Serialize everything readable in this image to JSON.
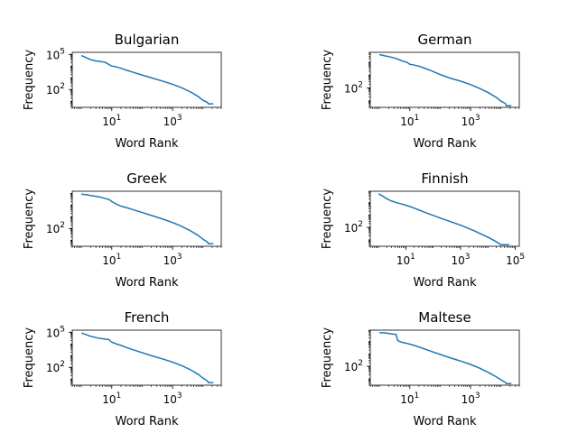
{
  "colors": {
    "series": "#1f77b4",
    "axes": "#000000",
    "background": "#ffffff"
  },
  "chart_data": [
    {
      "type": "line",
      "title": "Bulgarian",
      "xlabel": "Word Rank",
      "ylabel": "Frequency",
      "xscale": "log",
      "yscale": "log",
      "xlim": [
        0.5,
        40000
      ],
      "ylim": [
        3,
        150000
      ],
      "xticks": [
        {
          "base": "10",
          "exp": "1",
          "v": 10
        },
        {
          "base": "10",
          "exp": "3",
          "v": 1000
        }
      ],
      "yticks": [
        {
          "base": "10",
          "exp": "5",
          "v": 100000
        },
        {
          "base": "10",
          "exp": "2",
          "v": 100
        }
      ],
      "series": [
        {
          "x": [
            1,
            1.5,
            2,
            3,
            4,
            5,
            6,
            7,
            8,
            10,
            12,
            14,
            20,
            30,
            50,
            100,
            200,
            500,
            1000,
            2000,
            4000,
            7000,
            10000,
            14000,
            15000,
            20000,
            22000
          ],
          "y": [
            80000,
            50000,
            35000,
            28000,
            25000,
            23000,
            21000,
            17000,
            14000,
            10000,
            9500,
            8500,
            6500,
            4500,
            3000,
            1700,
            1000,
            500,
            280,
            140,
            60,
            25,
            12,
            8,
            6,
            6,
            6
          ]
        }
      ]
    },
    {
      "type": "line",
      "title": "German",
      "xlabel": "Word Rank",
      "ylabel": "Frequency",
      "xscale": "log",
      "yscale": "log",
      "xlim": [
        0.5,
        40000
      ],
      "ylim": [
        3,
        60000
      ],
      "xticks": [
        {
          "base": "10",
          "exp": "1",
          "v": 10
        },
        {
          "base": "10",
          "exp": "3",
          "v": 1000
        }
      ],
      "yticks": [
        {
          "base": "10",
          "exp": "2",
          "v": 100
        }
      ],
      "series": [
        {
          "x": [
            1,
            1.5,
            2,
            3,
            4,
            5,
            6,
            8,
            10,
            12,
            20,
            30,
            50,
            100,
            200,
            500,
            1000,
            2000,
            4000,
            7000,
            10000,
            14000,
            15000,
            20000,
            22000
          ],
          "y": [
            40000,
            32000,
            28000,
            22000,
            18000,
            14000,
            12000,
            10000,
            7000,
            6500,
            5000,
            3500,
            2200,
            1100,
            600,
            320,
            180,
            90,
            40,
            18,
            9,
            6,
            4,
            4,
            4
          ]
        }
      ]
    },
    {
      "type": "line",
      "title": "Greek",
      "xlabel": "Word Rank",
      "ylabel": "Frequency",
      "xscale": "log",
      "yscale": "log",
      "xlim": [
        0.5,
        40000
      ],
      "ylim": [
        3,
        150000
      ],
      "xticks": [
        {
          "base": "10",
          "exp": "1",
          "v": 10
        },
        {
          "base": "10",
          "exp": "3",
          "v": 1000
        }
      ],
      "yticks": [
        {
          "base": "10",
          "exp": "2",
          "v": 100
        }
      ],
      "series": [
        {
          "x": [
            1,
            1.5,
            2,
            3,
            4,
            5,
            6,
            8,
            10,
            12,
            15,
            20,
            30,
            50,
            100,
            200,
            500,
            1000,
            2000,
            4000,
            7000,
            10000,
            14000,
            15000,
            20000,
            22000
          ],
          "y": [
            85000,
            75000,
            65000,
            55000,
            48000,
            42000,
            36000,
            30000,
            20000,
            15000,
            11000,
            8000,
            6000,
            4000,
            2300,
            1300,
            600,
            320,
            150,
            60,
            25,
            12,
            7,
            5,
            5,
            5
          ]
        }
      ]
    },
    {
      "type": "line",
      "title": "Finnish",
      "xlabel": "Word Rank",
      "ylabel": "Frequency",
      "xscale": "log",
      "yscale": "log",
      "xlim": [
        0.5,
        140000
      ],
      "ylim": [
        3,
        80000
      ],
      "xticks": [
        {
          "base": "10",
          "exp": "1",
          "v": 10
        },
        {
          "base": "10",
          "exp": "3",
          "v": 1000
        },
        {
          "base": "10",
          "exp": "5",
          "v": 100000
        }
      ],
      "yticks": [
        {
          "base": "10",
          "exp": "2",
          "v": 100
        }
      ],
      "series": [
        {
          "x": [
            1,
            1.5,
            2,
            3,
            5,
            8,
            10,
            15,
            20,
            30,
            50,
            100,
            300,
            1000,
            3000,
            10000,
            20000,
            30000,
            40000,
            50000,
            60000
          ],
          "y": [
            50000,
            30000,
            20000,
            13000,
            9000,
            7000,
            6000,
            4500,
            3500,
            2500,
            1600,
            900,
            380,
            150,
            55,
            16,
            7,
            4,
            4,
            4,
            4
          ]
        }
      ]
    },
    {
      "type": "line",
      "title": "French",
      "xlabel": "Word Rank",
      "ylabel": "Frequency",
      "xscale": "log",
      "yscale": "log",
      "xlim": [
        0.5,
        40000
      ],
      "ylim": [
        3,
        150000
      ],
      "xticks": [
        {
          "base": "10",
          "exp": "1",
          "v": 10
        },
        {
          "base": "10",
          "exp": "3",
          "v": 1000
        }
      ],
      "yticks": [
        {
          "base": "10",
          "exp": "5",
          "v": 100000
        },
        {
          "base": "10",
          "exp": "2",
          "v": 100
        }
      ],
      "series": [
        {
          "x": [
            1,
            1.5,
            2,
            3,
            4,
            5,
            6,
            8,
            10,
            12,
            14,
            20,
            30,
            50,
            100,
            200,
            500,
            1000,
            2000,
            4000,
            7000,
            10000,
            14000,
            15000,
            20000,
            22000
          ],
          "y": [
            85000,
            60000,
            45000,
            35000,
            30000,
            28000,
            26000,
            24000,
            14000,
            12000,
            10000,
            7500,
            5000,
            3200,
            1800,
            1000,
            500,
            280,
            140,
            60,
            25,
            12,
            7,
            5,
            5,
            5
          ]
        }
      ]
    },
    {
      "type": "line",
      "title": "Maltese",
      "xlabel": "Word Rank",
      "ylabel": "Frequency",
      "xscale": "log",
      "yscale": "log",
      "xlim": [
        0.5,
        40000
      ],
      "ylim": [
        3,
        80000
      ],
      "xticks": [
        {
          "base": "10",
          "exp": "1",
          "v": 10
        },
        {
          "base": "10",
          "exp": "3",
          "v": 1000
        }
      ],
      "yticks": [
        {
          "base": "10",
          "exp": "2",
          "v": 100
        }
      ],
      "series": [
        {
          "x": [
            1,
            1.5,
            2,
            2.5,
            3,
            3.5,
            4,
            5,
            6,
            8,
            10,
            15,
            20,
            30,
            50,
            100,
            200,
            500,
            1000,
            2000,
            4000,
            7000,
            10000,
            14000,
            15000,
            20000,
            22000
          ],
          "y": [
            50000,
            48000,
            44000,
            40000,
            38000,
            37000,
            12000,
            9000,
            8000,
            7000,
            6000,
            4500,
            3500,
            2500,
            1600,
            900,
            500,
            250,
            140,
            70,
            30,
            14,
            8,
            5,
            4,
            4,
            4
          ]
        }
      ]
    }
  ]
}
